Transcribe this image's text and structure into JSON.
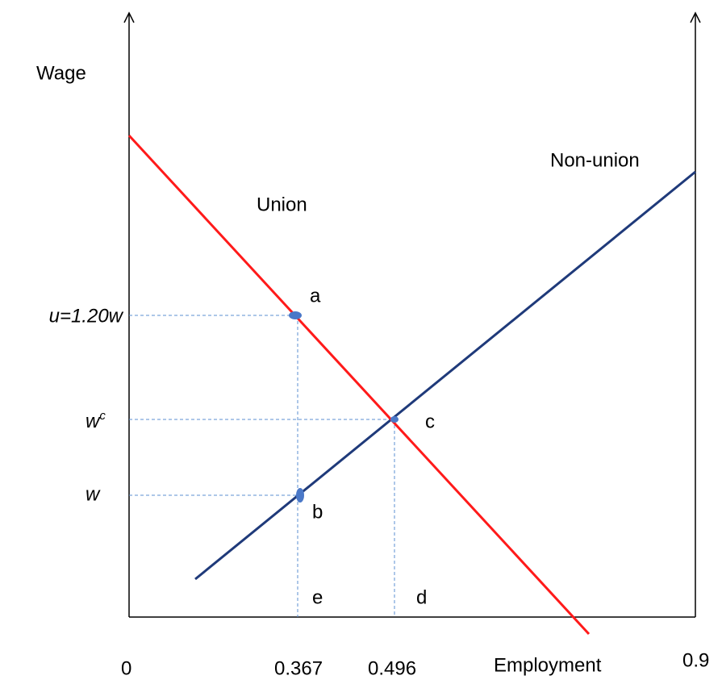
{
  "axes": {
    "y_label": "Wage",
    "x_label": "Employment",
    "x_origin": "0",
    "x_end": "0.9",
    "x_marks": [
      "0.367",
      "0.496"
    ]
  },
  "curves": {
    "union": "Union",
    "non_union": "Non-union"
  },
  "points": {
    "a": "a",
    "b": "b",
    "c": "c",
    "d": "d",
    "e": "e"
  },
  "wage_levels": {
    "union_wage": "u=1.20w",
    "competitive_wage": {
      "base": "w",
      "sup": "c"
    },
    "non_union_wage": "w"
  }
}
